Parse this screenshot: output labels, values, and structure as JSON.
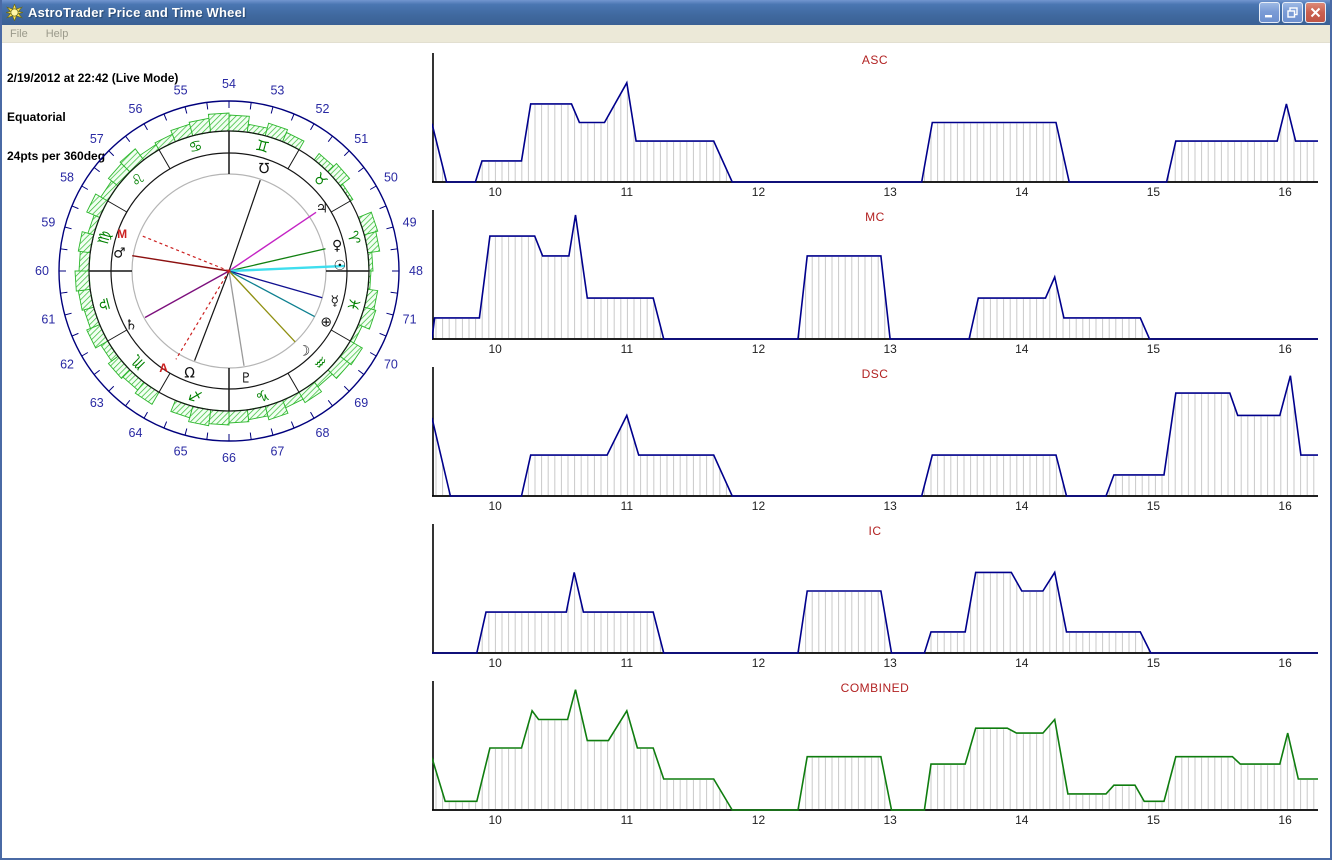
{
  "window": {
    "title": "AstroTrader Price and Time Wheel",
    "controls": {
      "minimize": "minimize",
      "restore": "restore",
      "close": "close"
    }
  },
  "menu": {
    "items": [
      {
        "label": "File"
      },
      {
        "label": "Help"
      }
    ]
  },
  "info": {
    "line1": "2/19/2012 at 22:42 (Live Mode)",
    "line2": "Equatorial",
    "line3": "24pts per 360deg"
  },
  "wheel": {
    "numbers": [
      {
        "angle": 90,
        "label": "54"
      },
      {
        "angle": 75,
        "label": "53"
      },
      {
        "angle": 60,
        "label": "52"
      },
      {
        "angle": 45,
        "label": "51"
      },
      {
        "angle": 30,
        "label": "50"
      },
      {
        "angle": 15,
        "label": "49"
      },
      {
        "angle": 0,
        "label": "48"
      },
      {
        "angle": -15,
        "label": "71"
      },
      {
        "angle": -30,
        "label": "70"
      },
      {
        "angle": -45,
        "label": "69"
      },
      {
        "angle": -60,
        "label": "68"
      },
      {
        "angle": -75,
        "label": "67"
      },
      {
        "angle": -90,
        "label": "66"
      },
      {
        "angle": -105,
        "label": "65"
      },
      {
        "angle": -120,
        "label": "64"
      },
      {
        "angle": -135,
        "label": "63"
      },
      {
        "angle": -150,
        "label": "62"
      },
      {
        "angle": -165,
        "label": "61"
      },
      {
        "angle": 180,
        "label": "60"
      },
      {
        "angle": 165,
        "label": "59"
      },
      {
        "angle": 150,
        "label": "58"
      },
      {
        "angle": 135,
        "label": "57"
      },
      {
        "angle": 120,
        "label": "56"
      },
      {
        "angle": 105,
        "label": "55"
      }
    ],
    "zodiac": [
      {
        "name": "aries",
        "glyph": "♈",
        "angle": 15
      },
      {
        "name": "taurus",
        "glyph": "♉",
        "angle": 45
      },
      {
        "name": "gemini",
        "glyph": "♊",
        "angle": 75
      },
      {
        "name": "cancer",
        "glyph": "♋",
        "angle": 105
      },
      {
        "name": "leo",
        "glyph": "♌",
        "angle": 135
      },
      {
        "name": "virgo",
        "glyph": "♍",
        "angle": 165
      },
      {
        "name": "libra",
        "glyph": "♎",
        "angle": -165
      },
      {
        "name": "scorpio",
        "glyph": "♏",
        "angle": -135
      },
      {
        "name": "sagittarius",
        "glyph": "♐",
        "angle": -105
      },
      {
        "name": "capricorn",
        "glyph": "♑",
        "angle": -75
      },
      {
        "name": "aquarius",
        "glyph": "♒",
        "angle": -45
      },
      {
        "name": "pisces",
        "glyph": "♓",
        "angle": -15
      }
    ],
    "planets": [
      {
        "name": "south-node",
        "glyph": "℧",
        "angle": 71,
        "glyph_r": 108,
        "line_color": "#151515",
        "line_r": 96,
        "width": 1.2
      },
      {
        "name": "jupiter",
        "glyph": "♃",
        "angle": 34,
        "glyph_r": 112,
        "line_color": "#c424c4",
        "line_r": 105,
        "width": 1.4
      },
      {
        "name": "venus",
        "glyph": "♀",
        "angle": 13,
        "glyph_r": 111,
        "line_color": "#118011",
        "line_r": 99,
        "width": 1.3
      },
      {
        "name": "sun",
        "glyph": "☉",
        "angle": 2.5,
        "glyph_r": 111,
        "line_color": "#3fdeee",
        "line_r": 116,
        "width": 2.4
      },
      {
        "name": "mercury",
        "glyph": "☿",
        "angle": -16,
        "glyph_r": 110,
        "line_color": "#101090",
        "line_r": 97,
        "width": 1.3
      },
      {
        "name": "part-of-fortune",
        "glyph": "⊕",
        "angle": -28,
        "glyph_r": 110,
        "line_color": "#0e8090",
        "line_r": 97,
        "width": 1.3
      },
      {
        "name": "moon",
        "glyph": "☽",
        "angle": -47,
        "glyph_r": 110,
        "line_color": "#8f8f10",
        "line_r": 97,
        "width": 1.3
      },
      {
        "name": "pluto",
        "glyph": "♇",
        "angle": -81,
        "glyph_r": 109,
        "line_color": "#9a9a9a",
        "line_r": 96,
        "width": 1.3
      },
      {
        "name": "north-node",
        "glyph": "Ω",
        "angle": -111,
        "glyph_r": 110,
        "line_color": "#151515",
        "line_r": 96,
        "width": 1.2
      },
      {
        "name": "saturn",
        "glyph": "♄",
        "angle": -151,
        "glyph_r": 112,
        "line_color": "#7d107d",
        "line_r": 96,
        "width": 1.4
      },
      {
        "name": "mars",
        "glyph": "♂",
        "angle": 171,
        "glyph_r": 111,
        "line_color": "#8c1010",
        "line_r": 98,
        "width": 1.4
      }
    ],
    "markers": [
      {
        "name": "mc-marker",
        "label": "M",
        "angle": 161,
        "r": 113,
        "line_angle": 158,
        "line_r": 96
      },
      {
        "name": "asc-marker",
        "label": "A",
        "angle": -124,
        "r": 117,
        "line_angle": -121,
        "line_r": 103
      }
    ],
    "histogram": [
      16,
      8,
      13,
      10,
      0,
      8,
      12,
      3,
      0,
      14,
      12,
      4,
      2,
      10,
      12,
      4,
      14,
      12,
      6,
      12,
      8,
      14,
      10,
      12,
      14,
      16,
      12,
      0,
      14,
      10,
      12,
      8,
      14,
      10,
      12,
      14,
      10,
      12,
      6,
      14,
      8,
      12,
      14,
      6,
      8,
      12,
      14,
      18
    ],
    "colors": {
      "ring_navy": "#00007d",
      "numbers": "#2929a3",
      "zodiac_green": "#008000",
      "hist_fill": "#f2fff2",
      "hist_stroke": "#2eb82e",
      "inner_gray": "#b5b5b5",
      "ring_black": "#151515",
      "marker_red": "#cc2020"
    }
  },
  "chart_meta": {
    "x_range": [
      9.52,
      16.25
    ],
    "axis_color": "#000000",
    "hatch_color": "#c9c9c9",
    "label_color": "#1f1f1f"
  },
  "chart_data": [
    {
      "type": "line",
      "title": "ASC",
      "color": "#00008c",
      "x_ticks": [
        10,
        11,
        12,
        13,
        14,
        15,
        16
      ],
      "ylim": [
        0,
        1
      ],
      "points": [
        [
          9.52,
          0.47
        ],
        [
          9.63,
          0
        ],
        [
          9.85,
          0
        ],
        [
          9.9,
          0.17
        ],
        [
          10.2,
          0.17
        ],
        [
          10.27,
          0.63
        ],
        [
          10.58,
          0.63
        ],
        [
          10.64,
          0.48
        ],
        [
          10.83,
          0.48
        ],
        [
          11.0,
          0.8
        ],
        [
          11.07,
          0.33
        ],
        [
          11.66,
          0.33
        ],
        [
          11.8,
          0
        ],
        [
          13.24,
          0
        ],
        [
          13.32,
          0.48
        ],
        [
          14.26,
          0.48
        ],
        [
          14.36,
          0
        ],
        [
          15.1,
          0
        ],
        [
          15.17,
          0.33
        ],
        [
          15.94,
          0.33
        ],
        [
          16.01,
          0.63
        ],
        [
          16.08,
          0.33
        ],
        [
          16.25,
          0.33
        ]
      ]
    },
    {
      "type": "line",
      "title": "MC",
      "color": "#00008c",
      "x_ticks": [
        10,
        11,
        12,
        13,
        14,
        15,
        16
      ],
      "ylim": [
        0,
        1
      ],
      "points": [
        [
          9.52,
          0
        ],
        [
          9.54,
          0.17
        ],
        [
          9.88,
          0.17
        ],
        [
          9.96,
          0.83
        ],
        [
          10.3,
          0.83
        ],
        [
          10.36,
          0.67
        ],
        [
          10.56,
          0.67
        ],
        [
          10.61,
          1.0
        ],
        [
          10.7,
          0.33
        ],
        [
          11.2,
          0.33
        ],
        [
          11.28,
          0
        ],
        [
          12.3,
          0
        ],
        [
          12.37,
          0.67
        ],
        [
          12.93,
          0.67
        ],
        [
          13.0,
          0
        ],
        [
          13.6,
          0
        ],
        [
          13.67,
          0.33
        ],
        [
          14.18,
          0.33
        ],
        [
          14.25,
          0.5
        ],
        [
          14.32,
          0.17
        ],
        [
          14.9,
          0.17
        ],
        [
          14.97,
          0
        ],
        [
          16.25,
          0
        ]
      ]
    },
    {
      "type": "line",
      "title": "DSC",
      "color": "#00008c",
      "x_ticks": [
        10,
        11,
        12,
        13,
        14,
        15,
        16
      ],
      "ylim": [
        0,
        1
      ],
      "points": [
        [
          9.52,
          0.63
        ],
        [
          9.66,
          0
        ],
        [
          10.2,
          0
        ],
        [
          10.27,
          0.33
        ],
        [
          10.85,
          0.33
        ],
        [
          11.0,
          0.65
        ],
        [
          11.09,
          0.33
        ],
        [
          11.66,
          0.33
        ],
        [
          11.8,
          0
        ],
        [
          13.24,
          0
        ],
        [
          13.32,
          0.33
        ],
        [
          14.26,
          0.33
        ],
        [
          14.34,
          0
        ],
        [
          14.64,
          0
        ],
        [
          14.7,
          0.17
        ],
        [
          15.08,
          0.17
        ],
        [
          15.17,
          0.83
        ],
        [
          15.58,
          0.83
        ],
        [
          15.64,
          0.65
        ],
        [
          15.96,
          0.65
        ],
        [
          16.04,
          0.97
        ],
        [
          16.12,
          0.33
        ],
        [
          16.25,
          0.33
        ]
      ]
    },
    {
      "type": "line",
      "title": "IC",
      "color": "#00008c",
      "x_ticks": [
        10,
        11,
        12,
        13,
        14,
        15,
        16
      ],
      "ylim": [
        0,
        1
      ],
      "points": [
        [
          9.52,
          0
        ],
        [
          9.86,
          0
        ],
        [
          9.93,
          0.33
        ],
        [
          10.54,
          0.33
        ],
        [
          10.6,
          0.65
        ],
        [
          10.67,
          0.33
        ],
        [
          11.2,
          0.33
        ],
        [
          11.28,
          0
        ],
        [
          12.3,
          0
        ],
        [
          12.37,
          0.5
        ],
        [
          12.93,
          0.5
        ],
        [
          13.01,
          0
        ],
        [
          13.26,
          0
        ],
        [
          13.31,
          0.17
        ],
        [
          13.57,
          0.17
        ],
        [
          13.65,
          0.65
        ],
        [
          13.92,
          0.65
        ],
        [
          14.0,
          0.5
        ],
        [
          14.16,
          0.5
        ],
        [
          14.25,
          0.65
        ],
        [
          14.34,
          0.17
        ],
        [
          14.9,
          0.17
        ],
        [
          14.98,
          0
        ],
        [
          16.25,
          0
        ]
      ]
    },
    {
      "type": "line",
      "title": "COMBINED",
      "color": "#0f7d0f",
      "x_ticks": [
        10,
        11,
        12,
        13,
        14,
        15,
        16
      ],
      "ylim": [
        0,
        1
      ],
      "points": [
        [
          9.52,
          0.42
        ],
        [
          9.62,
          0.07
        ],
        [
          9.86,
          0.07
        ],
        [
          9.96,
          0.5
        ],
        [
          10.2,
          0.5
        ],
        [
          10.28,
          0.8
        ],
        [
          10.33,
          0.73
        ],
        [
          10.55,
          0.73
        ],
        [
          10.61,
          0.97
        ],
        [
          10.7,
          0.56
        ],
        [
          10.86,
          0.56
        ],
        [
          11.0,
          0.8
        ],
        [
          11.08,
          0.5
        ],
        [
          11.2,
          0.5
        ],
        [
          11.28,
          0.25
        ],
        [
          11.66,
          0.25
        ],
        [
          11.8,
          0
        ],
        [
          12.3,
          0
        ],
        [
          12.37,
          0.43
        ],
        [
          12.93,
          0.43
        ],
        [
          13.01,
          0
        ],
        [
          13.26,
          0
        ],
        [
          13.31,
          0.37
        ],
        [
          13.57,
          0.37
        ],
        [
          13.65,
          0.66
        ],
        [
          13.89,
          0.66
        ],
        [
          13.96,
          0.62
        ],
        [
          14.16,
          0.62
        ],
        [
          14.25,
          0.73
        ],
        [
          14.35,
          0.13
        ],
        [
          14.64,
          0.13
        ],
        [
          14.7,
          0.2
        ],
        [
          14.86,
          0.2
        ],
        [
          14.93,
          0.07
        ],
        [
          15.08,
          0.07
        ],
        [
          15.17,
          0.43
        ],
        [
          15.6,
          0.43
        ],
        [
          15.66,
          0.37
        ],
        [
          15.96,
          0.37
        ],
        [
          16.02,
          0.62
        ],
        [
          16.1,
          0.25
        ],
        [
          16.25,
          0.25
        ]
      ]
    }
  ]
}
